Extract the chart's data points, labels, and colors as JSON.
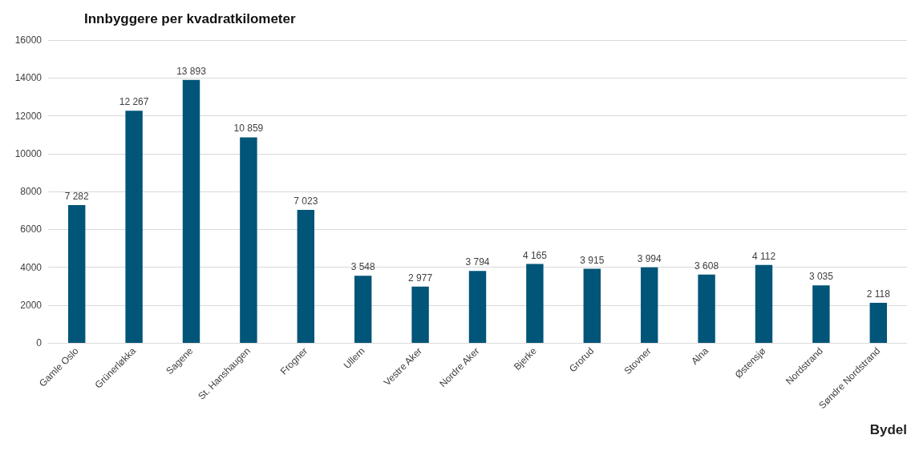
{
  "chart_data": {
    "type": "bar",
    "title": "Innbyggere per kvadratkilometer",
    "xlabel": "Bydel",
    "categories": [
      "Gamle Oslo",
      "Grünerløkka",
      "Sagene",
      "St. Hanshaugen",
      "Frogner",
      "Ullern",
      "Vestre Aker",
      "Nordre Aker",
      "Bjerke",
      "Grorud",
      "Stovner",
      "Alna",
      "Østensjø",
      "Nordstrand",
      "Søndre Nordstrand"
    ],
    "values": [
      7282,
      12267,
      13893,
      10859,
      7023,
      3548,
      2977,
      3794,
      4165,
      3915,
      3994,
      3608,
      4112,
      3035,
      2118
    ],
    "value_labels": [
      "7 282",
      "12 267",
      "13 893",
      "10 859",
      "7 023",
      "3 548",
      "2 977",
      "3 794",
      "4 165",
      "3 915",
      "3 994",
      "3 608",
      "4 112",
      "3 035",
      "2 118"
    ],
    "color": "#005578",
    "ylim": [
      0,
      16000
    ],
    "yticks": [
      0,
      2000,
      4000,
      6000,
      8000,
      10000,
      12000,
      14000,
      16000
    ],
    "grid": "y"
  }
}
